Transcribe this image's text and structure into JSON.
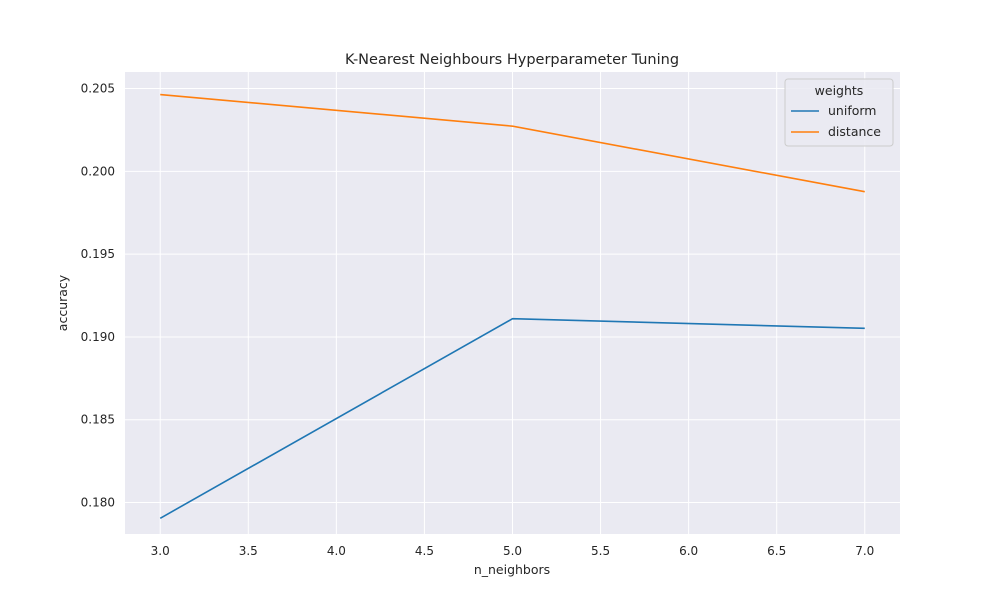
{
  "chart_data": {
    "type": "line",
    "title": "K-Nearest Neighbours Hyperparameter Tuning",
    "xlabel": "n_neighbors",
    "ylabel": "accuracy",
    "x": [
      3,
      5,
      7
    ],
    "series": [
      {
        "name": "uniform",
        "values": [
          0.17905,
          0.1911,
          0.19052
        ],
        "color": "#1f77b4"
      },
      {
        "name": "distance",
        "values": [
          0.20464,
          0.20273,
          0.19877
        ],
        "color": "#ff7f0e"
      }
    ],
    "xlim": [
      2.8,
      7.2
    ],
    "ylim": [
      0.1781,
      0.206
    ],
    "xticks": [
      "3.0",
      "3.5",
      "4.0",
      "4.5",
      "5.0",
      "5.5",
      "6.0",
      "6.5",
      "7.0"
    ],
    "yticks": [
      "0.180",
      "0.185",
      "0.190",
      "0.195",
      "0.200",
      "0.205"
    ],
    "legend": {
      "title": "weights",
      "position": "top-right"
    },
    "grid": true,
    "background": "#eaeaf2",
    "grid_color": "#ffffff"
  }
}
